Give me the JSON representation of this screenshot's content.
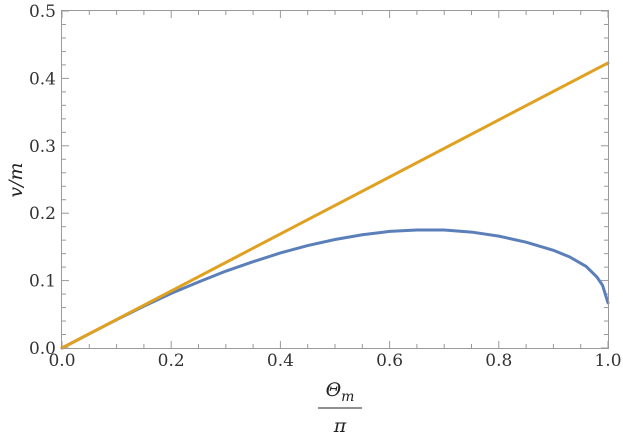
{
  "chart_data": {
    "type": "line",
    "title": "",
    "xlabel": {
      "numerator": "Θ",
      "subscript": "m",
      "denominator": "π"
    },
    "ylabel": "v/m",
    "xlim": [
      0,
      1
    ],
    "ylim": [
      0,
      0.5
    ],
    "grid": false,
    "x_ticks": [
      {
        "value": 0,
        "label": "0.0"
      },
      {
        "value": 0.2,
        "label": "0.2"
      },
      {
        "value": 0.4,
        "label": "0.4"
      },
      {
        "value": 0.6,
        "label": "0.6"
      },
      {
        "value": 0.8,
        "label": "0.8"
      },
      {
        "value": 1,
        "label": "1.0"
      }
    ],
    "y_ticks": [
      {
        "value": 0,
        "label": "0.0"
      },
      {
        "value": 0.1,
        "label": "0.1"
      },
      {
        "value": 0.2,
        "label": "0.2"
      },
      {
        "value": 0.3,
        "label": "0.3"
      },
      {
        "value": 0.4,
        "label": "0.4"
      },
      {
        "value": 0.5,
        "label": "0.5"
      }
    ],
    "series": [
      {
        "color": "#5b7fb8",
        "x": [
          0,
          0.05,
          0.1,
          0.15,
          0.2,
          0.25,
          0.3,
          0.35,
          0.4,
          0.45,
          0.5,
          0.55,
          0.6,
          0.65,
          0.7,
          0.75,
          0.8,
          0.85,
          0.9,
          0.93,
          0.96,
          0.98,
          0.99,
          1.0
        ],
        "y": [
          0,
          0.021,
          0.042,
          0.062,
          0.081,
          0.098,
          0.114,
          0.128,
          0.141,
          0.152,
          0.161,
          0.168,
          0.173,
          0.175,
          0.175,
          0.172,
          0.166,
          0.157,
          0.145,
          0.135,
          0.121,
          0.105,
          0.093,
          0.067
        ]
      },
      {
        "color": "#e0a020",
        "x": [
          0,
          1
        ],
        "y": [
          0,
          0.423
        ]
      }
    ]
  }
}
